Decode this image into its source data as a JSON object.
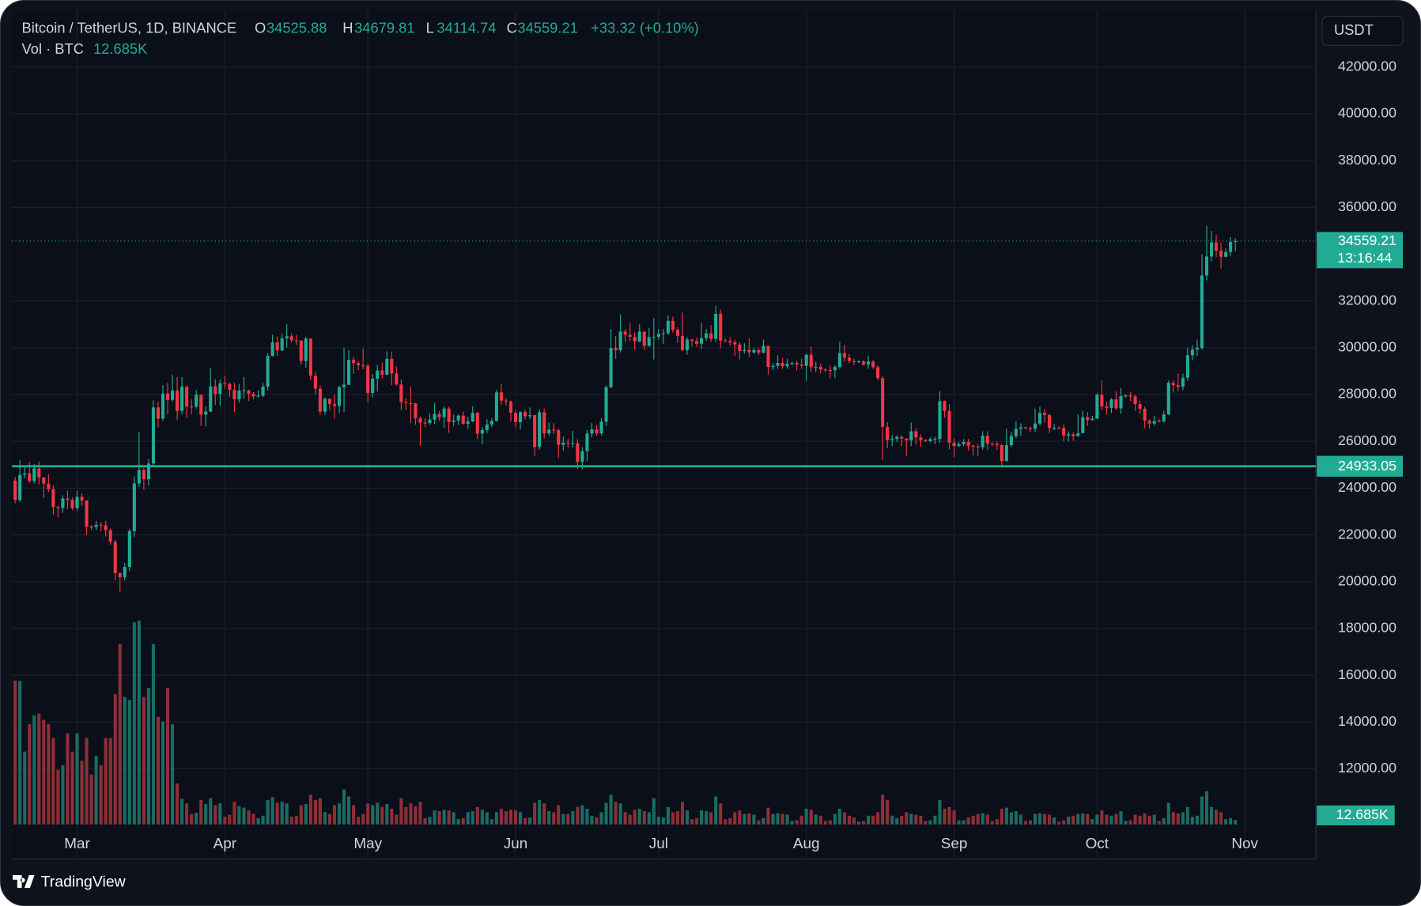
{
  "chart_data": {
    "type": "candlestick",
    "title": "Bitcoin / TetherUS, 1D, BINANCE",
    "open_letter": "O",
    "high_letter": "H",
    "low_letter": "L",
    "close_letter": "C",
    "change": "+33.32 (+0.10%)",
    "volume_title": "Vol · BTC",
    "volume_last_label": "12.685K",
    "currency": "USDT",
    "countdown": "13:16:44",
    "support_line": 24933.05,
    "up_color": "#22ab94",
    "down_color": "#f23645",
    "volume_up_color": "#1b6c63",
    "volume_down_color": "#8e2f37",
    "grid": true,
    "xlim": [
      -0.7,
      272.9
    ],
    "xticks": [
      {
        "value": 13,
        "label": "Mar"
      },
      {
        "value": 44,
        "label": "Apr"
      },
      {
        "value": 74,
        "label": "May"
      },
      {
        "value": 105,
        "label": "Jun"
      },
      {
        "value": 135,
        "label": "Jul"
      },
      {
        "value": 166,
        "label": "Aug"
      },
      {
        "value": 197,
        "label": "Sep"
      },
      {
        "value": 227,
        "label": "Oct"
      },
      {
        "value": 258,
        "label": "Nov"
      }
    ],
    "ylim": [
      8150,
      44400
    ],
    "yticks": [
      {
        "value": 12000,
        "label": "12000.00"
      },
      {
        "value": 14000,
        "label": "14000.00"
      },
      {
        "value": 16000,
        "label": "16000.00"
      },
      {
        "value": 18000,
        "label": "18000.00"
      },
      {
        "value": 20000,
        "label": "20000.00"
      },
      {
        "value": 22000,
        "label": "22000.00"
      },
      {
        "value": 24000,
        "label": "24000.00"
      },
      {
        "value": 26000,
        "label": "26000.00"
      },
      {
        "value": 28000,
        "label": "28000.00"
      },
      {
        "value": 30000,
        "label": "30000.00"
      },
      {
        "value": 32000,
        "label": "32000.00"
      },
      {
        "value": 36000,
        "label": "36000.00"
      },
      {
        "value": 38000,
        "label": "38000.00"
      },
      {
        "value": 40000,
        "label": "40000.00"
      },
      {
        "value": 42000,
        "label": "42000.00"
      }
    ],
    "open": [
      24320,
      23500,
      24570,
      24630,
      24300,
      24840,
      24450,
      24190,
      23950,
      23190,
      23150,
      23560,
      23490,
      23140,
      23630,
      23470,
      22350,
      22340,
      22430,
      22410,
      22200,
      21700,
      20360,
      20190,
      20630,
      22160,
      24200,
      24770,
      24380,
      25050,
      27450,
      26970,
      28040,
      27770,
      28170,
      27300,
      28330,
      27490,
      27480,
      27990,
      27140,
      27270,
      28350,
      28030,
      28480,
      28450,
      28200,
      27800,
      28170,
      28180,
      28030,
      27920,
      27950,
      28340,
      29650,
      30230,
      29890,
      30400,
      30490,
      30320,
      30310,
      29430,
      30390,
      28800,
      28250,
      27270,
      27820,
      27590,
      27510,
      28310,
      28420,
      29480,
      29340,
      29250,
      29230,
      28070,
      28680,
      29030,
      28850,
      29530,
      28900,
      28430,
      27670,
      27630,
      27620,
      26990,
      26800,
      26780,
      26930,
      27170,
      27030,
      27400,
      26830,
      26890,
      27100,
      26750,
      26850,
      27220,
      26330,
      26480,
      26720,
      26870,
      28090,
      27740,
      27700,
      27220,
      26820,
      27250,
      27070,
      27120,
      25760,
      27240,
      26340,
      26500,
      26480,
      25850,
      25940,
      25900,
      25920,
      25120,
      25580,
      26330,
      26510,
      26340,
      26840,
      28310,
      29990,
      29890,
      30690,
      30550,
      30470,
      30270,
      30690,
      30080,
      30450,
      30470,
      30590,
      30620,
      31150,
      30770,
      30510,
      29900,
      30350,
      30290,
      30170,
      30410,
      30620,
      30380,
      31450,
      30310,
      30290,
      30230,
      30140,
      29860,
      29910,
      29800,
      29900,
      29790,
      30080,
      29180,
      29230,
      29350,
      29210,
      29310,
      29350,
      29280,
      29230,
      29700,
      29170,
      29180,
      29070,
      29050,
      29040,
      29180,
      29770,
      29570,
      29430,
      29400,
      29420,
      29280,
      29410,
      29170,
      28700,
      26620,
      26050,
      26100,
      26190,
      26120,
      26040,
      26430,
      26160,
      26050,
      26010,
      26090,
      26100,
      27720,
      27300,
      25940,
      25800,
      25870,
      25970,
      25810,
      25780,
      25750,
      26240,
      25900,
      25890,
      25840,
      25160,
      25840,
      26230,
      26530,
      26600,
      26570,
      26530,
      26760,
      27210,
      27130,
      26570,
      26580,
      26570,
      26250,
      26300,
      26220,
      26350,
      27030,
      26910,
      26970,
      27990,
      27490,
      27430,
      27790,
      27410,
      27930,
      27960,
      27920,
      27590,
      27390,
      26880,
      26760,
      26860,
      26850,
      27150,
      28500,
      28400,
      28330,
      28720,
      29680,
      29920,
      29990,
      33090,
      33900,
      34500,
      34150,
      33890,
      34090,
      34525.88
    ],
    "high": [
      24480,
      25200,
      24880,
      25120,
      25020,
      25130,
      24470,
      24600,
      24130,
      23250,
      23690,
      23900,
      23600,
      23880,
      23780,
      23480,
      22420,
      22600,
      22550,
      22600,
      22270,
      21800,
      20400,
      20800,
      22250,
      24500,
      26400,
      24950,
      25250,
      27750,
      27700,
      28400,
      28500,
      28850,
      28750,
      28750,
      28400,
      27800,
      28200,
      27990,
      27500,
      29150,
      28650,
      28650,
      28800,
      28530,
      28500,
      28450,
      28750,
      28200,
      28100,
      28170,
      28500,
      29770,
      30550,
      30480,
      30600,
      31000,
      30620,
      30550,
      30320,
      30470,
      30410,
      28970,
      28380,
      27880,
      27820,
      28000,
      28380,
      30000,
      29900,
      29600,
      29450,
      29970,
      29330,
      28880,
      29270,
      29380,
      29850,
      29830,
      29200,
      28650,
      27840,
      28330,
      27650,
      27060,
      26980,
      27190,
      27650,
      27300,
      27480,
      27480,
      27150,
      27150,
      27270,
      27050,
      27500,
      27250,
      26600,
      26940,
      26990,
      28200,
      28450,
      27840,
      27750,
      27350,
      27300,
      27350,
      27450,
      27140,
      27370,
      27400,
      26800,
      26790,
      26530,
      26200,
      26100,
      26450,
      26100,
      25750,
      26480,
      26780,
      26700,
      26990,
      28400,
      30800,
      30500,
      31430,
      30800,
      31050,
      30660,
      31000,
      30700,
      30830,
      31280,
      30800,
      30800,
      31380,
      31330,
      30880,
      31500,
      30450,
      30380,
      30440,
      31050,
      30800,
      30970,
      31800,
      31630,
      30400,
      30450,
      30340,
      30240,
      30190,
      30400,
      30000,
      29990,
      30350,
      30080,
      29350,
      29680,
      29570,
      29530,
      29410,
      29450,
      29530,
      29740,
      30050,
      29400,
      29320,
      29120,
      29250,
      29250,
      30250,
      30130,
      29730,
      29540,
      29480,
      29470,
      29660,
      29470,
      29250,
      28780,
      26820,
      26270,
      26260,
      26250,
      26130,
      26800,
      26550,
      26300,
      26100,
      26170,
      26200,
      28150,
      27750,
      27580,
      26130,
      25970,
      26100,
      26100,
      25860,
      25880,
      26430,
      26430,
      25950,
      26000,
      25880,
      26540,
      26400,
      26860,
      26770,
      26620,
      26630,
      27400,
      27490,
      27380,
      27150,
      26740,
      26640,
      26730,
      26420,
      26390,
      27150,
      27300,
      27250,
      27090,
      28060,
      28600,
      27680,
      27850,
      28130,
      28290,
      28000,
      28100,
      27990,
      27740,
      27480,
      26950,
      27100,
      26970,
      27300,
      28600,
      28620,
      28900,
      28890,
      30000,
      30100,
      30350,
      34000,
      35200,
      35000,
      34830,
      34500,
      34250,
      34730,
      34679.81
    ],
    "low": [
      23350,
      23400,
      24420,
      24240,
      24200,
      24150,
      23580,
      23830,
      22850,
      22750,
      22950,
      23100,
      23060,
      23020,
      23250,
      22000,
      22200,
      22200,
      22150,
      21930,
      21580,
      20050,
      19550,
      20050,
      20450,
      21900,
      24050,
      23930,
      24120,
      24930,
      26600,
      26880,
      27150,
      27700,
      26900,
      27150,
      27000,
      27150,
      27400,
      26650,
      26630,
      27250,
      27550,
      27520,
      28250,
      27900,
      27250,
      27650,
      27820,
      27720,
      27790,
      27880,
      27880,
      28170,
      29620,
      29650,
      29860,
      30000,
      30220,
      30120,
      29270,
      29150,
      28600,
      28000,
      27130,
      27130,
      27330,
      26970,
      27200,
      27250,
      28400,
      28880,
      29050,
      29080,
      27670,
      27880,
      28130,
      28680,
      28820,
      28400,
      28380,
      27330,
      27330,
      26780,
      26710,
      25810,
      26600,
      26700,
      26740,
      26870,
      26580,
      26360,
      26650,
      26690,
      26700,
      26530,
      26820,
      26090,
      25870,
      26340,
      26600,
      26850,
      27550,
      27530,
      26840,
      26600,
      26500,
      26930,
      26950,
      25380,
      25650,
      26130,
      26250,
      26320,
      25300,
      25600,
      25720,
      25720,
      24820,
      24800,
      25150,
      26170,
      26250,
      26250,
      26650,
      28270,
      29530,
      29800,
      30250,
      30280,
      29900,
      30230,
      29920,
      30050,
      29500,
      30330,
      30160,
      30550,
      30640,
      30200,
      29850,
      29700,
      30050,
      30050,
      29950,
      30300,
      30250,
      30250,
      29970,
      30250,
      30080,
      29650,
      29500,
      29750,
      29600,
      29750,
      29700,
      29750,
      28850,
      29050,
      29100,
      29100,
      29100,
      29250,
      29030,
      29100,
      28580,
      28950,
      28950,
      28900,
      28960,
      28700,
      28700,
      29100,
      29400,
      29330,
      29250,
      29350,
      29230,
      29100,
      29100,
      28600,
      25200,
      25700,
      25800,
      25980,
      25800,
      25350,
      25800,
      25850,
      25770,
      25970,
      25960,
      25880,
      25950,
      27020,
      25660,
      25330,
      25750,
      25800,
      25600,
      25390,
      25350,
      25630,
      25630,
      25800,
      25630,
      24900,
      25130,
      25760,
      26130,
      26230,
      26500,
      26400,
      26390,
      26680,
      26800,
      26350,
      26480,
      26520,
      26000,
      25990,
      26030,
      26200,
      26340,
      26660,
      26890,
      26950,
      27340,
      27160,
      27210,
      27340,
      27170,
      27870,
      27730,
      27300,
      27160,
      26560,
      26540,
      26670,
      26820,
      26800,
      27120,
      28080,
      28150,
      28180,
      28600,
      29460,
      29650,
      29900,
      32880,
      33700,
      33880,
      33380,
      33860,
      33930,
      34114.74
    ],
    "close": [
      23500,
      24570,
      24630,
      24300,
      24840,
      24450,
      24190,
      23950,
      23190,
      23150,
      23560,
      23490,
      23140,
      23630,
      23470,
      22350,
      22340,
      22430,
      22410,
      22200,
      21700,
      20360,
      20190,
      20630,
      22160,
      24200,
      24770,
      24380,
      25050,
      27450,
      26970,
      28040,
      27770,
      28170,
      27300,
      28330,
      27490,
      27480,
      27990,
      27140,
      27270,
      28350,
      28030,
      28480,
      28450,
      28200,
      27800,
      28170,
      28180,
      28030,
      27920,
      27950,
      28340,
      29650,
      30230,
      29890,
      30400,
      30490,
      30320,
      30310,
      29430,
      30390,
      28800,
      28250,
      27270,
      27820,
      27590,
      27510,
      28310,
      28420,
      29480,
      29340,
      29250,
      29230,
      28070,
      28680,
      29030,
      28850,
      29530,
      28900,
      28430,
      27670,
      27630,
      27620,
      26990,
      26800,
      26780,
      26930,
      27170,
      27030,
      27400,
      26830,
      26890,
      27100,
      26750,
      26850,
      27220,
      26330,
      26480,
      26720,
      26870,
      28090,
      27740,
      27700,
      27220,
      26820,
      27250,
      27070,
      27120,
      25760,
      27240,
      26340,
      26500,
      26480,
      25850,
      25940,
      25900,
      25920,
      25120,
      25580,
      26330,
      26510,
      26340,
      26840,
      28310,
      29990,
      29890,
      30690,
      30550,
      30470,
      30270,
      30690,
      30080,
      30450,
      30470,
      30590,
      30620,
      31150,
      30770,
      30510,
      29900,
      30350,
      30290,
      30170,
      30410,
      30620,
      30380,
      31450,
      30310,
      30290,
      30230,
      30140,
      29860,
      29910,
      29800,
      29900,
      29790,
      30080,
      29180,
      29230,
      29350,
      29210,
      29310,
      29350,
      29280,
      29230,
      29700,
      29170,
      29180,
      29070,
      29050,
      29040,
      29180,
      29770,
      29570,
      29430,
      29400,
      29420,
      29280,
      29410,
      29170,
      28700,
      26620,
      26050,
      26100,
      26190,
      26120,
      26040,
      26430,
      26160,
      26050,
      26010,
      26090,
      26100,
      27720,
      27300,
      25940,
      25800,
      25870,
      25970,
      25810,
      25780,
      25750,
      26240,
      25900,
      25890,
      25840,
      25160,
      25840,
      26230,
      26530,
      26600,
      26570,
      26530,
      26760,
      27210,
      27130,
      26570,
      26580,
      26570,
      26250,
      26300,
      26220,
      26350,
      27030,
      26910,
      26970,
      27990,
      27490,
      27430,
      27790,
      27410,
      27930,
      27960,
      27920,
      27590,
      27390,
      26880,
      26760,
      26860,
      26850,
      27150,
      28500,
      28400,
      28330,
      28720,
      29680,
      29920,
      29990,
      33090,
      33900,
      34500,
      34150,
      33890,
      34090,
      34525.88,
      34559.21
    ],
    "volume": [
      411000,
      410000,
      208000,
      286000,
      312000,
      317000,
      299000,
      286000,
      247000,
      156000,
      169000,
      260000,
      208000,
      260000,
      182000,
      247000,
      143000,
      195000,
      169000,
      247000,
      247000,
      372000,
      515000,
      364000,
      356000,
      577000,
      582000,
      364000,
      390000,
      515000,
      307000,
      294000,
      390000,
      286000,
      117000,
      73000,
      60000,
      30000,
      33000,
      70000,
      58000,
      75000,
      55000,
      60000,
      22000,
      28000,
      65000,
      52000,
      48000,
      40000,
      30000,
      18000,
      25000,
      70000,
      78000,
      62000,
      65000,
      60000,
      22000,
      25000,
      55000,
      58000,
      85000,
      70000,
      75000,
      35000,
      30000,
      55000,
      60000,
      100000,
      80000,
      55000,
      22000,
      30000,
      60000,
      55000,
      62000,
      50000,
      58000,
      45000,
      28000,
      75000,
      50000,
      60000,
      52000,
      65000,
      18000,
      22000,
      40000,
      38000,
      42000,
      40000,
      35000,
      15000,
      18000,
      35000,
      38000,
      50000,
      42000,
      35000,
      15000,
      35000,
      45000,
      38000,
      42000,
      40000,
      35000,
      18000,
      20000,
      62000,
      70000,
      60000,
      38000,
      35000,
      55000,
      30000,
      30000,
      38000,
      50000,
      55000,
      45000,
      25000,
      20000,
      35000,
      62000,
      85000,
      65000,
      60000,
      35000,
      28000,
      42000,
      45000,
      38000,
      35000,
      75000,
      22000,
      20000,
      50000,
      35000,
      38000,
      65000,
      40000,
      15000,
      18000,
      40000,
      38000,
      35000,
      80000,
      60000,
      15000,
      18000,
      35000,
      40000,
      30000,
      32000,
      28000,
      12000,
      18000,
      48000,
      30000,
      32000,
      30000,
      28000,
      10000,
      12000,
      25000,
      45000,
      42000,
      28000,
      25000,
      10000,
      12000,
      30000,
      45000,
      35000,
      25000,
      20000,
      8000,
      10000,
      25000,
      25000,
      35000,
      85000,
      70000,
      25000,
      18000,
      25000,
      35000,
      30000,
      28000,
      25000,
      10000,
      12000,
      25000,
      70000,
      45000,
      50000,
      40000,
      12000,
      12000,
      20000,
      25000,
      30000,
      32000,
      28000,
      10000,
      15000,
      45000,
      48000,
      35000,
      38000,
      28000,
      10000,
      12000,
      30000,
      32000,
      30000,
      28000,
      20000,
      8000,
      12000,
      22000,
      25000,
      30000,
      32000,
      30000,
      15000,
      28000,
      40000,
      28000,
      25000,
      30000,
      38000,
      10000,
      12000,
      28000,
      25000,
      32000,
      25000,
      28000,
      10000,
      18000,
      62000,
      35000,
      32000,
      35000,
      50000,
      22000,
      25000,
      80000,
      95000,
      50000,
      42000,
      35000,
      15000,
      18000,
      12685
    ]
  },
  "brand": "TradingView"
}
